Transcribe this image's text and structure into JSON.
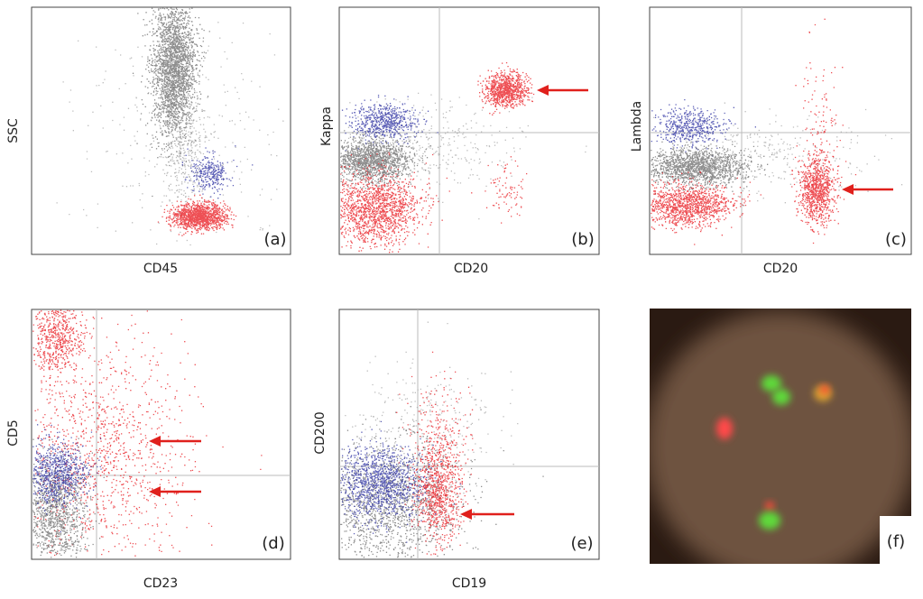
{
  "panels": [
    {
      "label": "(a)",
      "x_label": "CD45",
      "y_label": "SSC"
    },
    {
      "label": "(b)",
      "x_label": "CD20",
      "y_label": "Kappa"
    },
    {
      "label": "(c)",
      "x_label": "CD20",
      "y_label": "Lambda"
    },
    {
      "label": "(d)",
      "x_label": "CD23",
      "y_label": "CD5"
    },
    {
      "label": "(e)",
      "x_label": "CD19",
      "y_label": "CD200"
    },
    {
      "label": "(f)"
    }
  ]
}
